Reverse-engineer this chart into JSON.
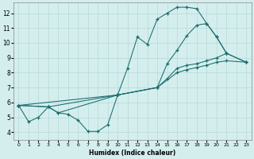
{
  "xlabel": "Humidex (Indice chaleur)",
  "bg_color": "#d4eeee",
  "line_color": "#1a6b6b",
  "grid_color": "#b8d8d8",
  "xlim": [
    -0.5,
    23.5
  ],
  "ylim": [
    3.5,
    12.7
  ],
  "xticks": [
    0,
    1,
    2,
    3,
    4,
    5,
    6,
    7,
    8,
    9,
    10,
    11,
    12,
    13,
    14,
    15,
    16,
    17,
    18,
    19,
    20,
    21,
    22,
    23
  ],
  "yticks": [
    4,
    5,
    6,
    7,
    8,
    9,
    10,
    11,
    12
  ],
  "line1_x": [
    0,
    1,
    2,
    3,
    4,
    5,
    6,
    7,
    8,
    9,
    10,
    11,
    12,
    13,
    14,
    15,
    16,
    17,
    18,
    19,
    20,
    21
  ],
  "line1_y": [
    5.8,
    4.7,
    5.0,
    5.7,
    5.3,
    5.2,
    4.8,
    4.05,
    4.05,
    4.5,
    6.5,
    8.3,
    10.4,
    9.9,
    11.6,
    12.0,
    12.4,
    12.4,
    12.3,
    11.3,
    10.4,
    9.3
  ],
  "line2_x": [
    0,
    3,
    4,
    10,
    14,
    15,
    16,
    17,
    18,
    19,
    20,
    21,
    23
  ],
  "line2_y": [
    5.8,
    5.7,
    5.3,
    6.5,
    7.0,
    7.6,
    8.3,
    8.5,
    8.6,
    8.8,
    9.0,
    9.3,
    8.7
  ],
  "line3_x": [
    0,
    3,
    10,
    14,
    16,
    17,
    18,
    19,
    20,
    21,
    23
  ],
  "line3_y": [
    5.8,
    5.7,
    6.5,
    7.0,
    8.0,
    8.2,
    8.35,
    8.5,
    8.7,
    8.8,
    8.7
  ],
  "line4_x": [
    0,
    10,
    14,
    15,
    16,
    17,
    18,
    19,
    20,
    21,
    23
  ],
  "line4_y": [
    5.8,
    6.5,
    7.0,
    8.6,
    9.5,
    10.5,
    11.2,
    11.3,
    10.4,
    9.3,
    8.7
  ]
}
